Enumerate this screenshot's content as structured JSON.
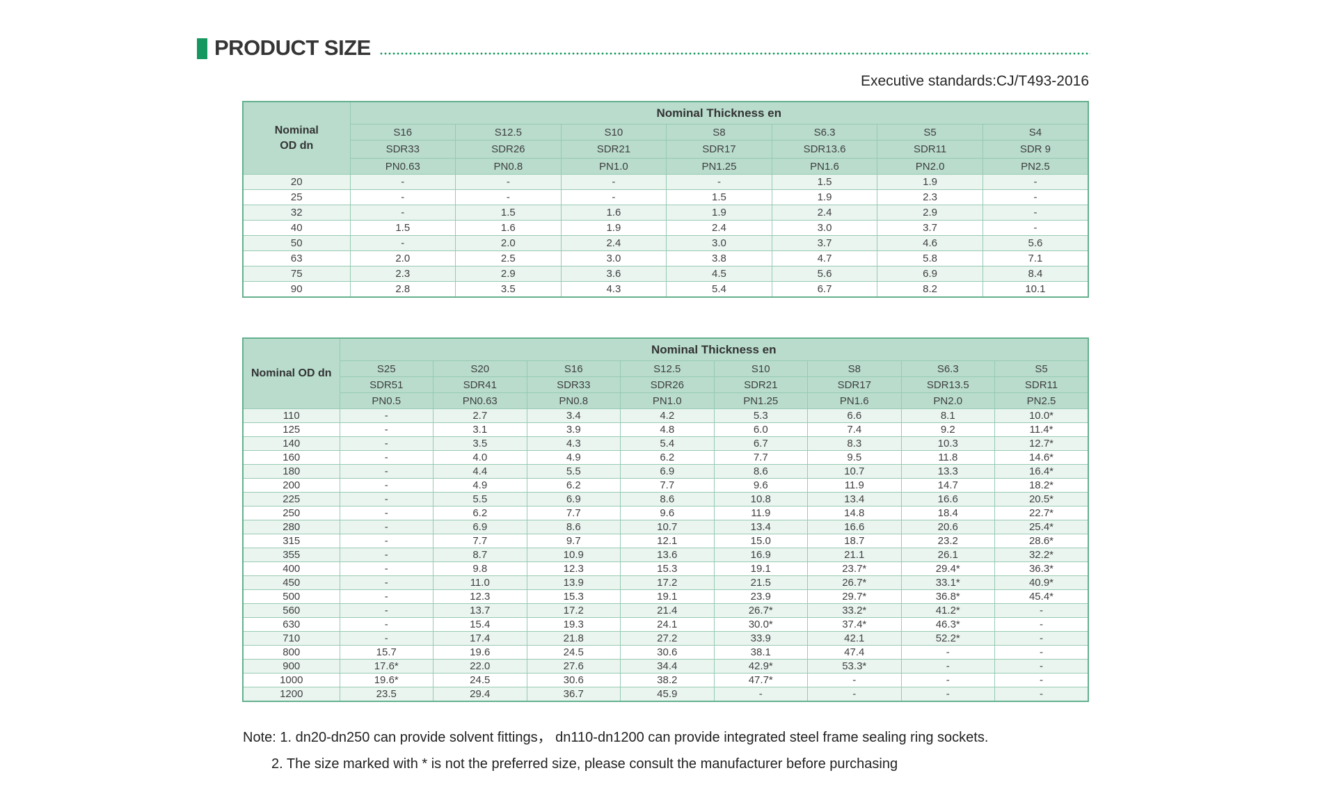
{
  "header": {
    "title": "PRODUCT SIZE",
    "standard": "Executive standards:CJ/T493-2016"
  },
  "accent_colors": {
    "bullet_green": "#16975f",
    "table_header_green": "#b9dccd",
    "row_tint_green": "#eaf5f0",
    "border_green": "#96cab3"
  },
  "tables": [
    {
      "id": "t1",
      "corner": [
        "Nominal",
        "OD dn"
      ],
      "span_header": "Nominal Thickness en",
      "columns": [
        {
          "s": "S16",
          "sdr": "SDR33",
          "pn": "PN0.63"
        },
        {
          "s": "S12.5",
          "sdr": "SDR26",
          "pn": "PN0.8"
        },
        {
          "s": "S10",
          "sdr": "SDR21",
          "pn": "PN1.0"
        },
        {
          "s": "S8",
          "sdr": "SDR17",
          "pn": "PN1.25"
        },
        {
          "s": "S6.3",
          "sdr": "SDR13.6",
          "pn": "PN1.6"
        },
        {
          "s": "S5",
          "sdr": "SDR11",
          "pn": "PN2.0"
        },
        {
          "s": "S4",
          "sdr": "SDR 9",
          "pn": "PN2.5"
        }
      ],
      "rows": [
        {
          "dn": "20",
          "values": [
            "-",
            "-",
            "-",
            "-",
            "1.5",
            "1.9",
            "-"
          ]
        },
        {
          "dn": "25",
          "values": [
            "-",
            "-",
            "-",
            "1.5",
            "1.9",
            "2.3",
            "-"
          ]
        },
        {
          "dn": "32",
          "values": [
            "-",
            "1.5",
            "1.6",
            "1.9",
            "2.4",
            "2.9",
            "-"
          ]
        },
        {
          "dn": "40",
          "values": [
            "1.5",
            "1.6",
            "1.9",
            "2.4",
            "3.0",
            "3.7",
            "-"
          ]
        },
        {
          "dn": "50",
          "values": [
            "-",
            "2.0",
            "2.4",
            "3.0",
            "3.7",
            "4.6",
            "5.6"
          ]
        },
        {
          "dn": "63",
          "values": [
            "2.0",
            "2.5",
            "3.0",
            "3.8",
            "4.7",
            "5.8",
            "7.1"
          ]
        },
        {
          "dn": "75",
          "values": [
            "2.3",
            "2.9",
            "3.6",
            "4.5",
            "5.6",
            "6.9",
            "8.4"
          ]
        },
        {
          "dn": "90",
          "values": [
            "2.8",
            "3.5",
            "4.3",
            "5.4",
            "6.7",
            "8.2",
            "10.1"
          ]
        }
      ]
    },
    {
      "id": "t2",
      "corner": [
        "Nominal OD dn"
      ],
      "span_header": "Nominal Thickness en",
      "columns": [
        {
          "s": "S25",
          "sdr": "SDR51",
          "pn": "PN0.5"
        },
        {
          "s": "S20",
          "sdr": "SDR41",
          "pn": "PN0.63"
        },
        {
          "s": "S16",
          "sdr": "SDR33",
          "pn": "PN0.8"
        },
        {
          "s": "S12.5",
          "sdr": "SDR26",
          "pn": "PN1.0"
        },
        {
          "s": "S10",
          "sdr": "SDR21",
          "pn": "PN1.25"
        },
        {
          "s": "S8",
          "sdr": "SDR17",
          "pn": "PN1.6"
        },
        {
          "s": "S6.3",
          "sdr": "SDR13.5",
          "pn": "PN2.0"
        },
        {
          "s": "S5",
          "sdr": "SDR11",
          "pn": "PN2.5"
        }
      ],
      "rows": [
        {
          "dn": "110",
          "values": [
            "-",
            "2.7",
            "3.4",
            "4.2",
            "5.3",
            "6.6",
            "8.1",
            "10.0*"
          ]
        },
        {
          "dn": "125",
          "values": [
            "-",
            "3.1",
            "3.9",
            "4.8",
            "6.0",
            "7.4",
            "9.2",
            "11.4*"
          ]
        },
        {
          "dn": "140",
          "values": [
            "-",
            "3.5",
            "4.3",
            "5.4",
            "6.7",
            "8.3",
            "10.3",
            "12.7*"
          ]
        },
        {
          "dn": "160",
          "values": [
            "-",
            "4.0",
            "4.9",
            "6.2",
            "7.7",
            "9.5",
            "11.8",
            "14.6*"
          ]
        },
        {
          "dn": "180",
          "values": [
            "-",
            "4.4",
            "5.5",
            "6.9",
            "8.6",
            "10.7",
            "13.3",
            "16.4*"
          ]
        },
        {
          "dn": "200",
          "values": [
            "-",
            "4.9",
            "6.2",
            "7.7",
            "9.6",
            "11.9",
            "14.7",
            "18.2*"
          ]
        },
        {
          "dn": "225",
          "values": [
            "-",
            "5.5",
            "6.9",
            "8.6",
            "10.8",
            "13.4",
            "16.6",
            "20.5*"
          ]
        },
        {
          "dn": "250",
          "values": [
            "-",
            "6.2",
            "7.7",
            "9.6",
            "11.9",
            "14.8",
            "18.4",
            "22.7*"
          ]
        },
        {
          "dn": "280",
          "values": [
            "-",
            "6.9",
            "8.6",
            "10.7",
            "13.4",
            "16.6",
            "20.6",
            "25.4*"
          ]
        },
        {
          "dn": "315",
          "values": [
            "-",
            "7.7",
            "9.7",
            "12.1",
            "15.0",
            "18.7",
            "23.2",
            "28.6*"
          ]
        },
        {
          "dn": "355",
          "values": [
            "-",
            "8.7",
            "10.9",
            "13.6",
            "16.9",
            "21.1",
            "26.1",
            "32.2*"
          ]
        },
        {
          "dn": "400",
          "values": [
            "-",
            "9.8",
            "12.3",
            "15.3",
            "19.1",
            "23.7*",
            "29.4*",
            "36.3*"
          ]
        },
        {
          "dn": "450",
          "values": [
            "-",
            "11.0",
            "13.9",
            "17.2",
            "21.5",
            "26.7*",
            "33.1*",
            "40.9*"
          ]
        },
        {
          "dn": "500",
          "values": [
            "-",
            "12.3",
            "15.3",
            "19.1",
            "23.9",
            "29.7*",
            "36.8*",
            "45.4*"
          ]
        },
        {
          "dn": "560",
          "values": [
            "-",
            "13.7",
            "17.2",
            "21.4",
            "26.7*",
            "33.2*",
            "41.2*",
            "-"
          ]
        },
        {
          "dn": "630",
          "values": [
            "-",
            "15.4",
            "19.3",
            "24.1",
            "30.0*",
            "37.4*",
            "46.3*",
            "-"
          ]
        },
        {
          "dn": "710",
          "values": [
            "-",
            "17.4",
            "21.8",
            "27.2",
            "33.9",
            "42.1",
            "52.2*",
            "-"
          ]
        },
        {
          "dn": "800",
          "values": [
            "15.7",
            "19.6",
            "24.5",
            "30.6",
            "38.1",
            "47.4",
            "-",
            "-"
          ]
        },
        {
          "dn": "900",
          "values": [
            "17.6*",
            "22.0",
            "27.6",
            "34.4",
            "42.9*",
            "53.3*",
            "-",
            "-"
          ]
        },
        {
          "dn": "1000",
          "values": [
            "19.6*",
            "24.5",
            "30.6",
            "38.2",
            "47.7*",
            "-",
            "-",
            "-"
          ]
        },
        {
          "dn": "1200",
          "values": [
            "23.5",
            "29.4",
            "36.7",
            "45.9",
            "-",
            "-",
            "-",
            "-"
          ]
        }
      ]
    }
  ],
  "notes": {
    "line1": "Note: 1. dn20-dn250 can provide solvent fittings， dn110-dn1200 can provide integrated steel frame sealing ring sockets.",
    "line2": "2. The size marked with * is not the preferred size, please consult the manufacturer before purchasing"
  }
}
